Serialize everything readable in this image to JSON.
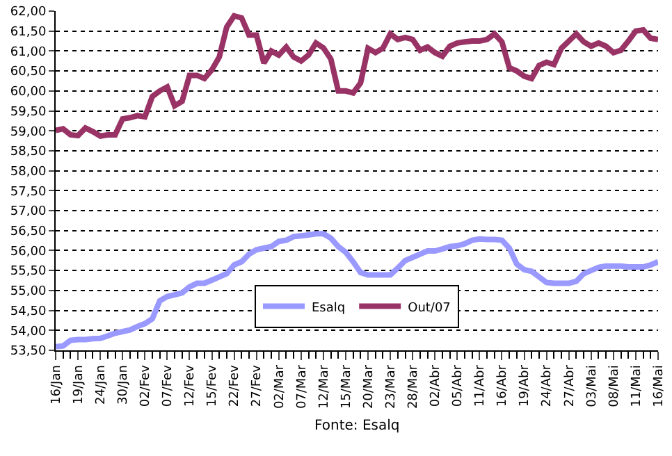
{
  "chart_data": {
    "type": "line",
    "categories": [
      "16/Jan",
      null,
      null,
      "19/Jan",
      null,
      null,
      "24/Jan",
      null,
      null,
      "30/Jan",
      null,
      null,
      "02/Fev",
      null,
      null,
      "07/Fev",
      null,
      null,
      "12/Fev",
      null,
      null,
      "15/Fev",
      null,
      null,
      "22/Fev",
      null,
      null,
      "27/Fev",
      null,
      null,
      "02/Mar",
      null,
      null,
      "07/Mar",
      null,
      null,
      "12/Mar",
      null,
      null,
      "15/Mar",
      null,
      null,
      "20/Mar",
      null,
      null,
      "23/Mar",
      null,
      null,
      "28/Mar",
      null,
      null,
      "02/Abr",
      null,
      null,
      "05/Abr",
      null,
      null,
      "11/Abr",
      null,
      null,
      "16/Abr",
      null,
      null,
      "19/Abr",
      null,
      null,
      "24/Abr",
      null,
      null,
      "27/Abr",
      null,
      null,
      "03/Mai",
      null,
      null,
      "08/Mai",
      null,
      null,
      "11/Mai",
      null,
      null,
      "16/Mai"
    ],
    "series": [
      {
        "name": "Esalq",
        "color": "#9999ff",
        "values": [
          53.59,
          53.61,
          53.75,
          53.77,
          53.77,
          53.79,
          53.8,
          53.86,
          53.93,
          53.97,
          54.01,
          54.1,
          54.17,
          54.29,
          54.74,
          54.85,
          54.89,
          54.94,
          55.09,
          55.18,
          55.18,
          55.26,
          55.34,
          55.42,
          55.64,
          55.72,
          55.91,
          56.02,
          56.06,
          56.1,
          56.23,
          56.26,
          56.35,
          56.37,
          56.39,
          56.42,
          56.42,
          56.31,
          56.1,
          55.96,
          55.72,
          55.45,
          55.39,
          55.39,
          55.39,
          55.39,
          55.56,
          55.75,
          55.83,
          55.91,
          55.99,
          55.99,
          56.04,
          56.1,
          56.12,
          56.17,
          56.26,
          56.29,
          56.28,
          56.28,
          56.26,
          56.06,
          55.66,
          55.52,
          55.48,
          55.34,
          55.2,
          55.18,
          55.18,
          55.18,
          55.23,
          55.42,
          55.5,
          55.58,
          55.61,
          55.61,
          55.61,
          55.59,
          55.59,
          55.59,
          55.64,
          55.72
        ]
      },
      {
        "name": "Out/07",
        "color": "#993366",
        "values": [
          59.01,
          59.05,
          58.9,
          58.88,
          59.07,
          58.98,
          58.87,
          58.9,
          58.9,
          59.3,
          59.33,
          59.38,
          59.35,
          59.86,
          60.0,
          60.1,
          59.63,
          59.74,
          60.39,
          60.39,
          60.31,
          60.53,
          60.85,
          61.6,
          61.88,
          61.83,
          61.4,
          61.4,
          60.7,
          61.0,
          60.9,
          61.1,
          60.85,
          60.75,
          60.9,
          61.2,
          61.08,
          60.8,
          60.0,
          60.0,
          59.95,
          60.2,
          61.07,
          60.96,
          61.07,
          61.43,
          61.29,
          61.34,
          61.29,
          61.02,
          61.1,
          60.96,
          60.87,
          61.12,
          61.2,
          61.23,
          61.25,
          61.25,
          61.29,
          61.43,
          61.23,
          60.58,
          60.5,
          60.37,
          60.31,
          60.64,
          60.72,
          60.66,
          61.07,
          61.25,
          61.43,
          61.23,
          61.12,
          61.2,
          61.12,
          60.96,
          61.02,
          61.25,
          61.5,
          61.53,
          61.32,
          61.29
        ]
      }
    ],
    "ylim": [
      53.5,
      62
    ],
    "yticks": [
      {
        "value": 53.5,
        "label": "53,50"
      },
      {
        "value": 54,
        "label": "54,00"
      },
      {
        "value": 54.5,
        "label": "54,50"
      },
      {
        "value": 55,
        "label": "55,00"
      },
      {
        "value": 55.5,
        "label": "55,50"
      },
      {
        "value": 56,
        "label": "56,00"
      },
      {
        "value": 56.5,
        "label": "56,50"
      },
      {
        "value": 57,
        "label": "57,00"
      },
      {
        "value": 57.5,
        "label": "57,50"
      },
      {
        "value": 58,
        "label": "58,00"
      },
      {
        "value": 58.5,
        "label": "58,50"
      },
      {
        "value": 59,
        "label": "59,00"
      },
      {
        "value": 59.5,
        "label": "59,50"
      },
      {
        "value": 60,
        "label": "60,00"
      },
      {
        "value": 60.5,
        "label": "60,50"
      },
      {
        "value": 61,
        "label": "61,00"
      },
      {
        "value": 61.5,
        "label": "61,50"
      },
      {
        "value": 62,
        "label": "62,00"
      }
    ],
    "grid": "y",
    "legend": "bottom",
    "marker": "none",
    "line_style": "solid",
    "annotations": [
      "Fonte: Esalq"
    ]
  }
}
